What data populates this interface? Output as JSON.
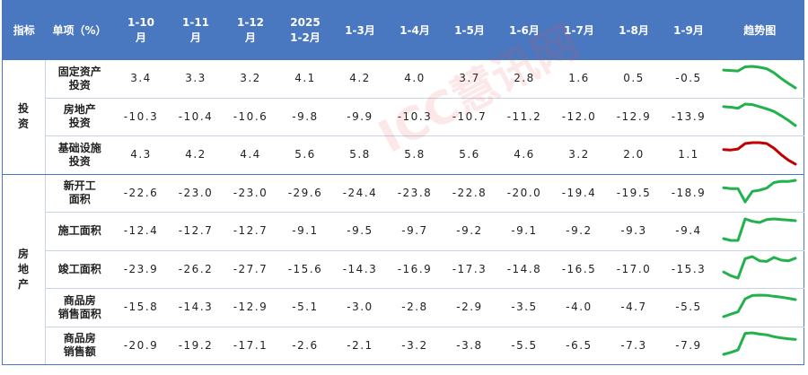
{
  "header": {
    "indicator": "指标",
    "item": "单项（%）",
    "periods": [
      "1-10\n月",
      "1-11\n月",
      "1-12\n月",
      "2025\n1-2月",
      "1-3月",
      "1-4月",
      "1-5月",
      "1-6月",
      "1-7月",
      "1-8月",
      "1-9月"
    ],
    "trend": "趋势图"
  },
  "watermark": "ICC慧讯网",
  "groups": [
    {
      "name": "投资",
      "rows": [
        {
          "name": "固定资产\n投资",
          "color": "#22b14c",
          "cells": [
            "3.4",
            "3.3",
            "3.2",
            "4.1",
            "4.2",
            "4.0",
            "3.7",
            "2.8",
            "1.6",
            "0.5",
            "-0.5"
          ]
        },
        {
          "name": "房地产\n投资",
          "color": "#22b14c",
          "cells": [
            "-10.3",
            "-10.4",
            "-10.6",
            "-9.8",
            "-9.9",
            "-10.3",
            "-10.7",
            "-11.2",
            "-12.0",
            "-12.9",
            "-13.9"
          ]
        },
        {
          "name": "基础设施\n投资",
          "color": "#c00000",
          "cells": [
            "4.3",
            "4.2",
            "4.4",
            "5.6",
            "5.8",
            "5.8",
            "5.6",
            "4.6",
            "3.2",
            "2.0",
            "1.1"
          ]
        }
      ]
    },
    {
      "name": "房地产",
      "rows": [
        {
          "name": "新开工\n面积",
          "color": "#22b14c",
          "cells": [
            "-22.6",
            "-23.0",
            "-23.0",
            "-29.6",
            "-24.4",
            "-23.8",
            "-22.8",
            "-20.0",
            "-19.4",
            "-19.5",
            "-18.9"
          ]
        },
        {
          "name": "施工面积",
          "color": "#22b14c",
          "cells": [
            "-12.4",
            "-12.7",
            "-12.7",
            "-9.1",
            "-9.5",
            "-9.7",
            "-9.2",
            "-9.1",
            "-9.2",
            "-9.3",
            "-9.4"
          ]
        },
        {
          "name": "竣工面积",
          "color": "#22b14c",
          "cells": [
            "-23.9",
            "-26.2",
            "-27.7",
            "-15.6",
            "-14.3",
            "-16.9",
            "-17.3",
            "-14.8",
            "-16.5",
            "-17.0",
            "-15.3"
          ]
        },
        {
          "name": "商品房\n销售面积",
          "color": "#22b14c",
          "cells": [
            "-15.8",
            "-14.3",
            "-12.9",
            "-5.1",
            "-3.0",
            "-2.8",
            "-2.9",
            "-3.5",
            "-4.0",
            "-4.7",
            "-5.5"
          ]
        },
        {
          "name": "商品房\n销售额",
          "color": "#22b14c",
          "cells": [
            "-20.9",
            "-19.2",
            "-17.1",
            "-2.6",
            "-2.1",
            "-3.2",
            "-3.8",
            "-5.5",
            "-6.5",
            "-7.3",
            "-7.9"
          ]
        }
      ]
    }
  ]
}
